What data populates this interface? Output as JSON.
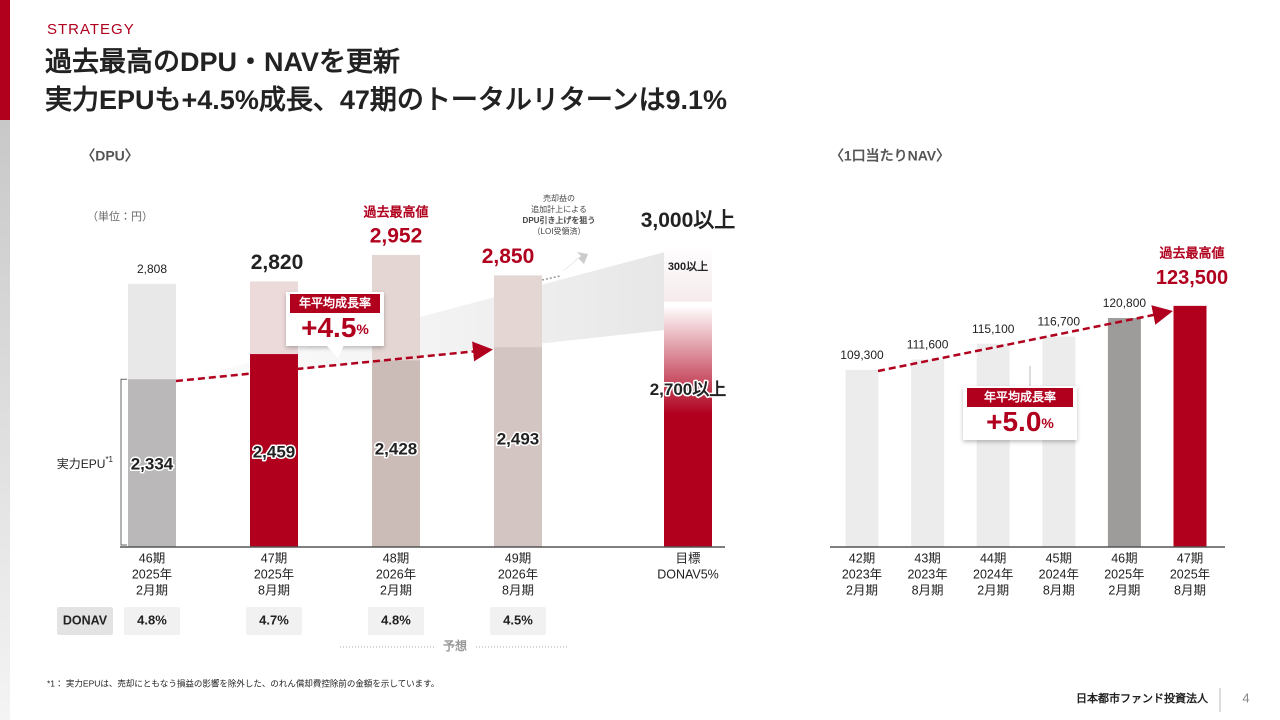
{
  "header": {
    "section": "STRATEGY",
    "title_lines": [
      "過去最高のDPU・NAVを更新",
      "実力EPUも+4.5%成長、47期のトータルリターンは9.1%"
    ]
  },
  "chart_data": [
    {
      "type": "bar",
      "title": "〈DPU〉",
      "unit_note": "（単位：円）",
      "categories": [
        [
          "46期",
          "2025年",
          "2月期"
        ],
        [
          "47期",
          "2025年",
          "8月期"
        ],
        [
          "48期",
          "2026年",
          "2月期"
        ],
        [
          "49期",
          "2026年",
          "8月期"
        ],
        [
          "目標",
          "DONAV5%"
        ]
      ],
      "series": [
        {
          "values": [
            2808,
            2820,
            2952,
            2850,
            3000
          ],
          "value_labels": [
            "2,808",
            "2,820",
            "2,952",
            "2,850",
            "3,000以上"
          ],
          "colors": [
            "#e8e8e8",
            "#ecd9da",
            "#e3d6d3",
            "#e3d6d3",
            "#ead3d6"
          ]
        },
        {
          "name": "実力EPU",
          "name_note": "*1",
          "values": [
            2334,
            2459,
            2428,
            2493,
            2700
          ],
          "value_labels": [
            "2,334",
            "2,459",
            "2,428",
            "2,493",
            "2,700以上"
          ],
          "colors": [
            "#bab8b8",
            "#b0001e",
            "#cbbcb8",
            "#d3c5c1",
            "#b0001e"
          ]
        }
      ],
      "ylim": [
        1500,
        3200
      ],
      "record_label": "過去最高値",
      "target_gap_label": "300以上",
      "cagr": {
        "label": "年平均成長率",
        "value": "+4.5",
        "unit": "%"
      },
      "note_lines": [
        "売却益の",
        "追加計上による",
        "DPU引き上げを狙う",
        "（LOI受領済）"
      ],
      "forecast_label": "予想",
      "donav": {
        "label": "DONAV",
        "values": [
          "4.8%",
          "4.7%",
          "4.8%",
          "4.5%"
        ]
      }
    },
    {
      "type": "bar",
      "title": "〈1口当たりNAV〉",
      "categories": [
        [
          "42期",
          "2023年",
          "2月期"
        ],
        [
          "43期",
          "2023年",
          "8月期"
        ],
        [
          "44期",
          "2024年",
          "2月期"
        ],
        [
          "45期",
          "2024年",
          "8月期"
        ],
        [
          "46期",
          "2025年",
          "2月期"
        ],
        [
          "47期",
          "2025年",
          "8月期"
        ]
      ],
      "values": [
        109300,
        111600,
        115100,
        116700,
        120800,
        123500
      ],
      "value_labels": [
        "109,300",
        "111,600",
        "115,100",
        "116,700",
        "120,800",
        "123,500"
      ],
      "colors": [
        "#ececec",
        "#ececec",
        "#ececec",
        "#ececec",
        "#9e9b9b",
        "#b0001e"
      ],
      "ylim": [
        70000,
        140000
      ],
      "record_label": "過去最高値",
      "cagr": {
        "label": "年平均成長率",
        "value": "+5.0",
        "unit": "%"
      }
    }
  ],
  "footnote": "*1： 実力EPUは、売却にともなう損益の影響を除外した、のれん償却費控除前の金額を示しています。",
  "footer": {
    "company": "日本都市ファンド投資法人",
    "page": 4
  }
}
